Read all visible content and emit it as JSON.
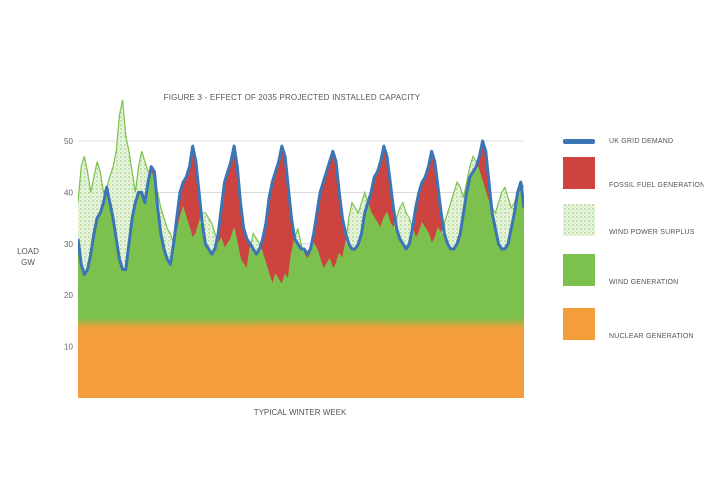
{
  "chart_data": {
    "type": "area",
    "title": "FIGURE 3 - EFFECT OF 2035 PROJECTED INSTALLED CAPACITY",
    "xlabel": "TYPICAL WINTER WEEK",
    "ylabel_lines": [
      "LOAD",
      "GW"
    ],
    "yticks": [
      10,
      20,
      30,
      40,
      50
    ],
    "ylim": [
      0,
      52
    ],
    "grid": "horizontal",
    "legend_placement": "right",
    "legend": [
      {
        "label": "UK GRID DEMAND",
        "color": "#3b75b4",
        "kind": "line"
      },
      {
        "label": "FOSSIL FUEL GENERATION",
        "color": "#cc4340",
        "kind": "box"
      },
      {
        "label": "WIND POWER SURPLUS",
        "color": "#b9dc9c",
        "kind": "stipple"
      },
      {
        "label": "WIND GENERATION",
        "color": "#7cc14e",
        "kind": "box"
      },
      {
        "label": "NUCLEAR GENERATION",
        "color": "#f39d3b",
        "kind": "box"
      }
    ],
    "nuclear_level": 14,
    "x": [
      0,
      1,
      2,
      3,
      4,
      5,
      6,
      7,
      8,
      9,
      10,
      11,
      12,
      13,
      14,
      15,
      16,
      17,
      18,
      19,
      20,
      21,
      22,
      23,
      24,
      25,
      26,
      27,
      28,
      29,
      30,
      31,
      32,
      33,
      34,
      35,
      36,
      37,
      38,
      39,
      40,
      41,
      42,
      43,
      44,
      45,
      46,
      47,
      48,
      49,
      50,
      51,
      52,
      53,
      54,
      55,
      56,
      57,
      58,
      59,
      60,
      61,
      62,
      63,
      64,
      65,
      66,
      67,
      68,
      69,
      70,
      71,
      72,
      73,
      74,
      75,
      76,
      77,
      78,
      79,
      80,
      81,
      82,
      83,
      84,
      85,
      86,
      87,
      88,
      89,
      90,
      91,
      92,
      93,
      94,
      95,
      96,
      97,
      98,
      99,
      100,
      101,
      102,
      103,
      104,
      105,
      106,
      107,
      108,
      109,
      110,
      111,
      112,
      113,
      114,
      115,
      116,
      117,
      118,
      119,
      120,
      121,
      122,
      123,
      124,
      125,
      126,
      127,
      128,
      129,
      130,
      131,
      132,
      133,
      134,
      135,
      136,
      137,
      138,
      139,
      140
    ],
    "series": [
      {
        "name": "UK GRID DEMAND",
        "values": [
          31,
          26,
          24,
          25,
          28,
          32,
          35,
          36,
          38,
          41,
          38,
          35,
          31,
          27,
          25,
          25,
          30,
          35,
          38,
          40,
          40,
          38,
          42,
          45,
          44,
          37,
          32,
          29,
          27,
          26,
          30,
          35,
          40,
          42,
          43,
          45,
          49,
          46,
          40,
          34,
          30,
          29,
          28,
          29,
          32,
          37,
          42,
          44,
          46,
          49,
          45,
          38,
          33,
          31,
          30,
          29,
          28,
          29,
          31,
          34,
          39,
          42,
          44,
          46,
          49,
          47,
          41,
          35,
          31,
          30,
          29,
          29,
          28,
          29,
          32,
          36,
          40,
          42,
          44,
          46,
          48,
          46,
          40,
          35,
          32,
          30,
          29,
          29,
          30,
          32,
          36,
          38,
          40,
          43,
          44,
          46,
          49,
          47,
          42,
          37,
          33,
          31,
          30,
          29,
          30,
          33,
          37,
          40,
          42,
          43,
          45,
          48,
          46,
          41,
          36,
          32,
          30,
          29,
          29,
          30,
          32,
          36,
          40,
          43,
          44,
          45,
          47,
          50,
          48,
          42,
          36,
          33,
          30,
          29,
          29,
          30,
          33,
          36,
          40,
          42,
          37
        ]
      },
      {
        "name": "WIND GENERATION + SURPLUS",
        "values": [
          38,
          45,
          47,
          44,
          40,
          43,
          46,
          44,
          40,
          41,
          43,
          45,
          48,
          55,
          58,
          51,
          48,
          44,
          40,
          45,
          48,
          46,
          44,
          44,
          42,
          40,
          37,
          35,
          33,
          32,
          30,
          32,
          35,
          37,
          35,
          33,
          31,
          32,
          34,
          36,
          36,
          35,
          34,
          32,
          30,
          31,
          29,
          30,
          31,
          33,
          30,
          27,
          26,
          25,
          29,
          32,
          31,
          30,
          28,
          26,
          24,
          22,
          24,
          23,
          22,
          24,
          23,
          28,
          31,
          33,
          30,
          28,
          27,
          28,
          30,
          29,
          27,
          25,
          26,
          27,
          25,
          26,
          28,
          27,
          30,
          35,
          38,
          37,
          36,
          38,
          40,
          38,
          36,
          35,
          34,
          33,
          35,
          36,
          34,
          33,
          35,
          37,
          38,
          36,
          35,
          33,
          31,
          32,
          34,
          33,
          32,
          30,
          31,
          33,
          32,
          34,
          36,
          38,
          40,
          42,
          41,
          39,
          42,
          45,
          47,
          46,
          44,
          42,
          40,
          38,
          37,
          36,
          38,
          40,
          41,
          39,
          37,
          38,
          40,
          42,
          41
        ]
      }
    ]
  }
}
